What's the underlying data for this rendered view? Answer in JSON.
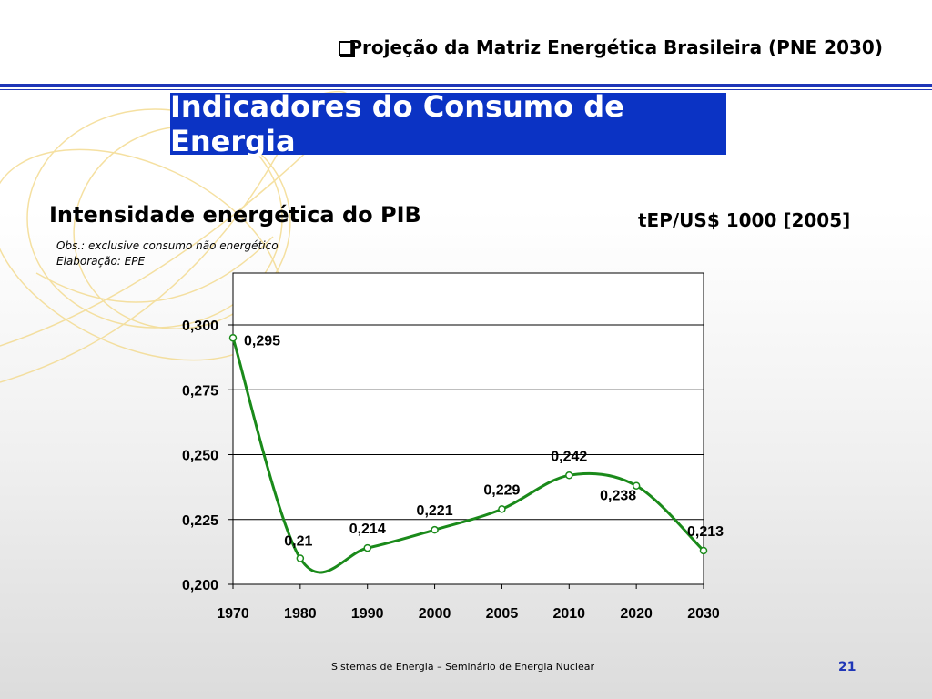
{
  "header": {
    "title": "Projeção da Matriz Energética Brasileira (PNE 2030)"
  },
  "banner": {
    "title": "Indicadores do Consumo de Energia"
  },
  "chart_header": {
    "title": "Intensidade energética do PIB",
    "unit": "tEP/US$ 1000 [2005]",
    "note_1": "Obs.: exclusive consumo não energético",
    "note_2": "Elaboração: EPE"
  },
  "chart_data": {
    "type": "line",
    "title": "Intensidade energética do PIB",
    "xlabel": "",
    "ylabel": "tEP/US$ 1000 [2005]",
    "categories": [
      "1970",
      "1980",
      "1990",
      "2000",
      "2005",
      "2010",
      "2020",
      "2030"
    ],
    "values": [
      0.295,
      0.21,
      0.214,
      0.221,
      0.229,
      0.242,
      0.238,
      0.213
    ],
    "data_labels": [
      "0,295",
      "0,21",
      "0,214",
      "0,221",
      "0,229",
      "0,242",
      "0,238",
      "0,213"
    ],
    "yticks": [
      0.2,
      0.225,
      0.25,
      0.275,
      0.3
    ],
    "ytick_labels": [
      "0,200",
      "0,225",
      "0,250",
      "0,275",
      "0,300"
    ],
    "ylim": [
      0.2,
      0.32
    ],
    "grid": true,
    "legend": "none",
    "line_color": "#1a8a1a"
  },
  "footer": {
    "text": "Sistemas de Energia – Seminário de Energia Nuclear",
    "page": "21"
  }
}
